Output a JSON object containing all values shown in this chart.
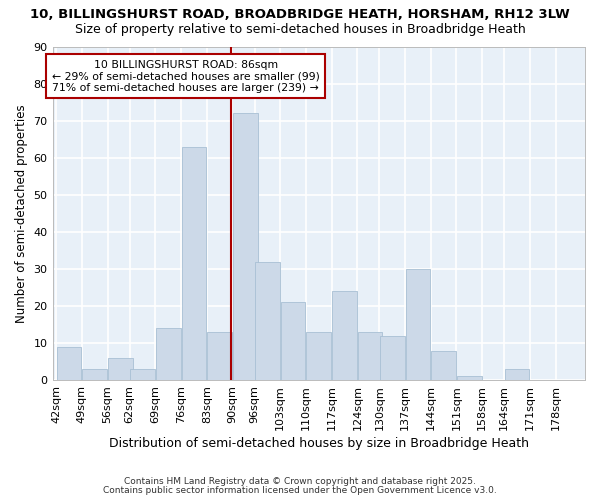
{
  "title": "10, BILLINGSHURST ROAD, BROADBRIDGE HEATH, HORSHAM, RH12 3LW",
  "subtitle": "Size of property relative to semi-detached houses in Broadbridge Heath",
  "xlabel": "Distribution of semi-detached houses by size in Broadbridge Heath",
  "ylabel": "Number of semi-detached properties",
  "categories": [
    "42sqm",
    "49sqm",
    "56sqm",
    "62sqm",
    "69sqm",
    "76sqm",
    "83sqm",
    "90sqm",
    "96sqm",
    "103sqm",
    "110sqm",
    "117sqm",
    "124sqm",
    "130sqm",
    "137sqm",
    "144sqm",
    "151sqm",
    "158sqm",
    "164sqm",
    "171sqm",
    "178sqm"
  ],
  "values": [
    9,
    3,
    6,
    3,
    14,
    63,
    13,
    72,
    32,
    21,
    13,
    24,
    13,
    12,
    30,
    8,
    1,
    0,
    3,
    0,
    0
  ],
  "bar_color": "#ccd9e8",
  "bar_edge_color": "#a8bfd4",
  "vline_color": "#aa0000",
  "annotation_title": "10 BILLINGSHURST ROAD: 86sqm",
  "annotation_line1": "← 29% of semi-detached houses are smaller (99)",
  "annotation_line2": "71% of semi-detached houses are larger (239) →",
  "annotation_box_edge_color": "#aa0000",
  "ylim": [
    0,
    90
  ],
  "yticks": [
    0,
    10,
    20,
    30,
    40,
    50,
    60,
    70,
    80,
    90
  ],
  "title_fontsize": 9.5,
  "subtitle_fontsize": 9,
  "xlabel_fontsize": 9,
  "ylabel_fontsize": 8.5,
  "tick_fontsize": 8,
  "footnote1": "Contains HM Land Registry data © Crown copyright and database right 2025.",
  "footnote2": "Contains public sector information licensed under the Open Government Licence v3.0.",
  "fig_bg_color": "#ffffff",
  "plot_bg_color": "#e8f0f8",
  "grid_color": "#ffffff",
  "bin_width": 7,
  "vline_x": 89.5
}
